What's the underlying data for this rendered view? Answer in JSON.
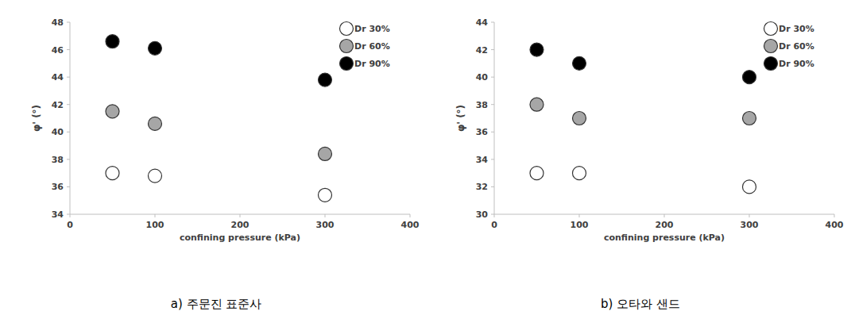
{
  "chart_data": [
    {
      "type": "scatter",
      "title": "a) 주문진 표준사",
      "x_label": "confining pressure (kPa)",
      "y_label": "φ' (°)",
      "x": [
        50,
        100,
        300
      ],
      "series": [
        {
          "name": "Dr 30%",
          "color": "#ffffff",
          "values": [
            37.0,
            36.8,
            35.4
          ]
        },
        {
          "name": "Dr 60%",
          "color": "#a6a6a6",
          "values": [
            41.5,
            40.6,
            38.4
          ]
        },
        {
          "name": "Dr 90%",
          "color": "#000000",
          "values": [
            46.6,
            46.1,
            43.8
          ]
        }
      ],
      "xlim": [
        0,
        400
      ],
      "xticks": [
        0,
        100,
        200,
        300,
        400
      ],
      "ylim": [
        34,
        48
      ],
      "yticks": [
        34,
        36,
        38,
        40,
        42,
        44,
        46,
        48
      ],
      "legend": "top-right",
      "grid": false,
      "marker": "circle"
    },
    {
      "type": "scatter",
      "title": "b) 오타와 샌드",
      "x_label": "confining pressure (kPa)",
      "y_label": "φ' (°)",
      "x": [
        50,
        100,
        300
      ],
      "series": [
        {
          "name": "Dr 30%",
          "color": "#ffffff",
          "values": [
            33,
            33,
            32
          ]
        },
        {
          "name": "Dr 60%",
          "color": "#a6a6a6",
          "values": [
            38,
            37,
            37
          ]
        },
        {
          "name": "Dr 90%",
          "color": "#000000",
          "values": [
            42,
            41,
            40
          ]
        }
      ],
      "xlim": [
        0,
        400
      ],
      "xticks": [
        0,
        100,
        200,
        300,
        400
      ],
      "ylim": [
        30,
        44
      ],
      "yticks": [
        30,
        32,
        34,
        36,
        38,
        40,
        42,
        44
      ],
      "legend": "top-right",
      "grid": false,
      "marker": "circle"
    }
  ]
}
